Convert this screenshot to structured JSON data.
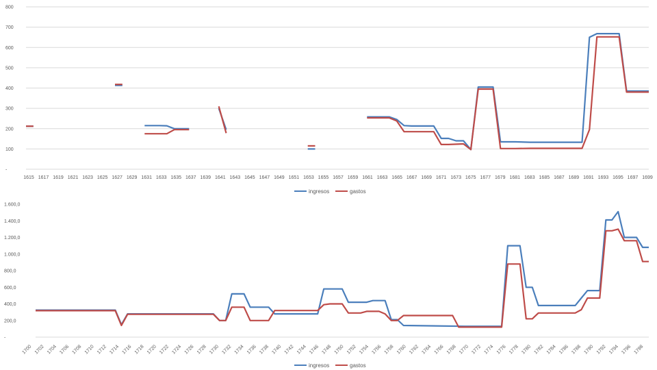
{
  "chart_data": [
    {
      "type": "line",
      "title": "",
      "xlabel": "",
      "ylabel": "",
      "ylim": [
        0,
        800
      ],
      "yticks": [
        "-",
        "100",
        "200",
        "300",
        "400",
        "500",
        "600",
        "700",
        "800"
      ],
      "grid": true,
      "legend": "bottom",
      "x_tick_labels": [
        "1615",
        "1617",
        "1619",
        "1621",
        "1623",
        "1625",
        "1627",
        "1629",
        "1631",
        "1633",
        "1635",
        "1637",
        "1639",
        "1641",
        "1643",
        "1645",
        "1647",
        "1649",
        "1651",
        "1653",
        "1655",
        "1657",
        "1659",
        "1661",
        "1663",
        "1665",
        "1667",
        "1669",
        "1671",
        "1673",
        "1675",
        "1677",
        "1679",
        "1681",
        "1683",
        "1685",
        "1687",
        "1689",
        "1691",
        "1693",
        "1695",
        "1697",
        "1699"
      ],
      "x_range": [
        1615,
        1699
      ],
      "series": [
        {
          "name": "ingresos",
          "color": "#4a7ebb",
          "segments": [
            [
              [
                1615,
                212
              ],
              [
                1616,
                212
              ]
            ],
            [
              [
                1627,
                413
              ],
              [
                1628,
                413
              ]
            ],
            [
              [
                1631,
                215
              ],
              [
                1633,
                215
              ],
              [
                1634,
                214
              ],
              [
                1635,
                200
              ],
              [
                1637,
                200
              ]
            ],
            [
              [
                1641,
                300
              ],
              [
                1642,
                195
              ]
            ],
            [
              [
                1653,
                100
              ],
              [
                1654,
                100
              ]
            ],
            [
              [
                1661,
                258
              ],
              [
                1663,
                258
              ],
              [
                1664,
                258
              ],
              [
                1665,
                245
              ],
              [
                1666,
                215
              ],
              [
                1667,
                213
              ],
              [
                1669,
                213
              ],
              [
                1670,
                213
              ],
              [
                1671,
                152
              ],
              [
                1672,
                152
              ],
              [
                1673,
                140
              ],
              [
                1674,
                140
              ],
              [
                1675,
                97
              ],
              [
                1676,
                405
              ],
              [
                1677,
                405
              ],
              [
                1678,
                405
              ],
              [
                1679,
                135
              ],
              [
                1681,
                135
              ],
              [
                1683,
                133
              ],
              [
                1689,
                133
              ],
              [
                1690,
                133
              ],
              [
                1691,
                650
              ],
              [
                1692,
                668
              ],
              [
                1694,
                668
              ],
              [
                1695,
                668
              ],
              [
                1696,
                385
              ],
              [
                1699,
                385
              ]
            ]
          ]
        },
        {
          "name": "gastos",
          "color": "#be4b48",
          "segments": [
            [
              [
                1615,
                212
              ],
              [
                1616,
                212
              ]
            ],
            [
              [
                1627,
                418
              ],
              [
                1628,
                418
              ]
            ],
            [
              [
                1631,
                175
              ],
              [
                1633,
                175
              ],
              [
                1634,
                175
              ],
              [
                1635,
                195
              ],
              [
                1637,
                195
              ]
            ],
            [
              [
                1641,
                310
              ],
              [
                1642,
                178
              ]
            ],
            [
              [
                1653,
                115
              ],
              [
                1654,
                115
              ]
            ],
            [
              [
                1661,
                253
              ],
              [
                1663,
                253
              ],
              [
                1664,
                253
              ],
              [
                1665,
                238
              ],
              [
                1666,
                185
              ],
              [
                1669,
                185
              ],
              [
                1670,
                185
              ],
              [
                1671,
                122
              ],
              [
                1672,
                122
              ],
              [
                1674,
                125
              ],
              [
                1675,
                97
              ],
              [
                1676,
                395
              ],
              [
                1677,
                395
              ],
              [
                1678,
                395
              ],
              [
                1679,
                102
              ],
              [
                1681,
                102
              ],
              [
                1683,
                103
              ],
              [
                1689,
                103
              ],
              [
                1690,
                103
              ],
              [
                1691,
                195
              ],
              [
                1692,
                652
              ],
              [
                1694,
                652
              ],
              [
                1695,
                652
              ],
              [
                1696,
                380
              ],
              [
                1699,
                380
              ]
            ]
          ]
        }
      ]
    },
    {
      "type": "line",
      "title": "",
      "xlabel": "",
      "ylabel": "",
      "ylim": [
        0,
        1600
      ],
      "yticks": [
        "-",
        "200,0",
        "400,0",
        "600,0",
        "800,0",
        "1.000,0",
        "1.200,0",
        "1.400,0",
        "1.600,0"
      ],
      "grid": false,
      "legend": "bottom",
      "x_tick_labels": [
        "1700",
        "1702",
        "1704",
        "1706",
        "1708",
        "1710",
        "1712",
        "1714",
        "1716",
        "1718",
        "1720",
        "1722",
        "1724",
        "1726",
        "1728",
        "1730",
        "1732",
        "1734",
        "1736",
        "1738",
        "1740",
        "1742",
        "1744",
        "1746",
        "1748",
        "1750",
        "1752",
        "1754",
        "1756",
        "1758",
        "1760",
        "1762",
        "1764",
        "1766",
        "1768",
        "1770",
        "1772",
        "1774",
        "1776",
        "1778",
        "1780",
        "1782",
        "1784",
        "1786",
        "1788",
        "1790",
        "1792",
        "1794",
        "1796",
        "1798"
      ],
      "x_range": [
        1700,
        1798
      ],
      "series": [
        {
          "name": "ingresos",
          "color": "#4a7ebb",
          "points": [
            [
              1700,
              325
            ],
            [
              1713,
              325
            ],
            [
              1714,
              150
            ],
            [
              1715,
              280
            ],
            [
              1729,
              280
            ],
            [
              1730,
              200
            ],
            [
              1731,
              200
            ],
            [
              1732,
              520
            ],
            [
              1733,
              520
            ],
            [
              1734,
              520
            ],
            [
              1735,
              360
            ],
            [
              1738,
              360
            ],
            [
              1739,
              280
            ],
            [
              1746,
              280
            ],
            [
              1747,
              580
            ],
            [
              1748,
              580
            ],
            [
              1750,
              580
            ],
            [
              1751,
              420
            ],
            [
              1754,
              420
            ],
            [
              1755,
              440
            ],
            [
              1757,
              440
            ],
            [
              1758,
              210
            ],
            [
              1759,
              210
            ],
            [
              1760,
              140
            ],
            [
              1770,
              130
            ],
            [
              1776,
              130
            ],
            [
              1777,
              1100
            ],
            [
              1779,
              1100
            ],
            [
              1780,
              600
            ],
            [
              1781,
              600
            ],
            [
              1782,
              380
            ],
            [
              1788,
              380
            ],
            [
              1789,
              470
            ],
            [
              1790,
              560
            ],
            [
              1792,
              560
            ],
            [
              1793,
              1410
            ],
            [
              1794,
              1410
            ],
            [
              1795,
              1510
            ],
            [
              1796,
              1200
            ],
            [
              1798,
              1200
            ],
            [
              1799,
              1080
            ],
            [
              1800,
              1080
            ]
          ]
        },
        {
          "name": "gastos",
          "color": "#be4b48",
          "points": [
            [
              1700,
              318
            ],
            [
              1713,
              318
            ],
            [
              1714,
              140
            ],
            [
              1715,
              275
            ],
            [
              1729,
              275
            ],
            [
              1730,
              200
            ],
            [
              1731,
              200
            ],
            [
              1732,
              360
            ],
            [
              1734,
              360
            ],
            [
              1735,
              200
            ],
            [
              1738,
              200
            ],
            [
              1739,
              320
            ],
            [
              1746,
              320
            ],
            [
              1747,
              390
            ],
            [
              1748,
              400
            ],
            [
              1750,
              400
            ],
            [
              1751,
              290
            ],
            [
              1753,
              290
            ],
            [
              1754,
              310
            ],
            [
              1756,
              310
            ],
            [
              1757,
              280
            ],
            [
              1758,
              200
            ],
            [
              1759,
              200
            ],
            [
              1760,
              260
            ],
            [
              1768,
              260
            ],
            [
              1769,
              120
            ],
            [
              1776,
              120
            ],
            [
              1777,
              880
            ],
            [
              1779,
              880
            ],
            [
              1780,
              220
            ],
            [
              1781,
              220
            ],
            [
              1782,
              290
            ],
            [
              1788,
              290
            ],
            [
              1789,
              330
            ],
            [
              1790,
              470
            ],
            [
              1792,
              470
            ],
            [
              1793,
              1280
            ],
            [
              1794,
              1280
            ],
            [
              1795,
              1300
            ],
            [
              1796,
              1160
            ],
            [
              1798,
              1160
            ],
            [
              1799,
              910
            ],
            [
              1800,
              910
            ]
          ]
        }
      ]
    }
  ]
}
